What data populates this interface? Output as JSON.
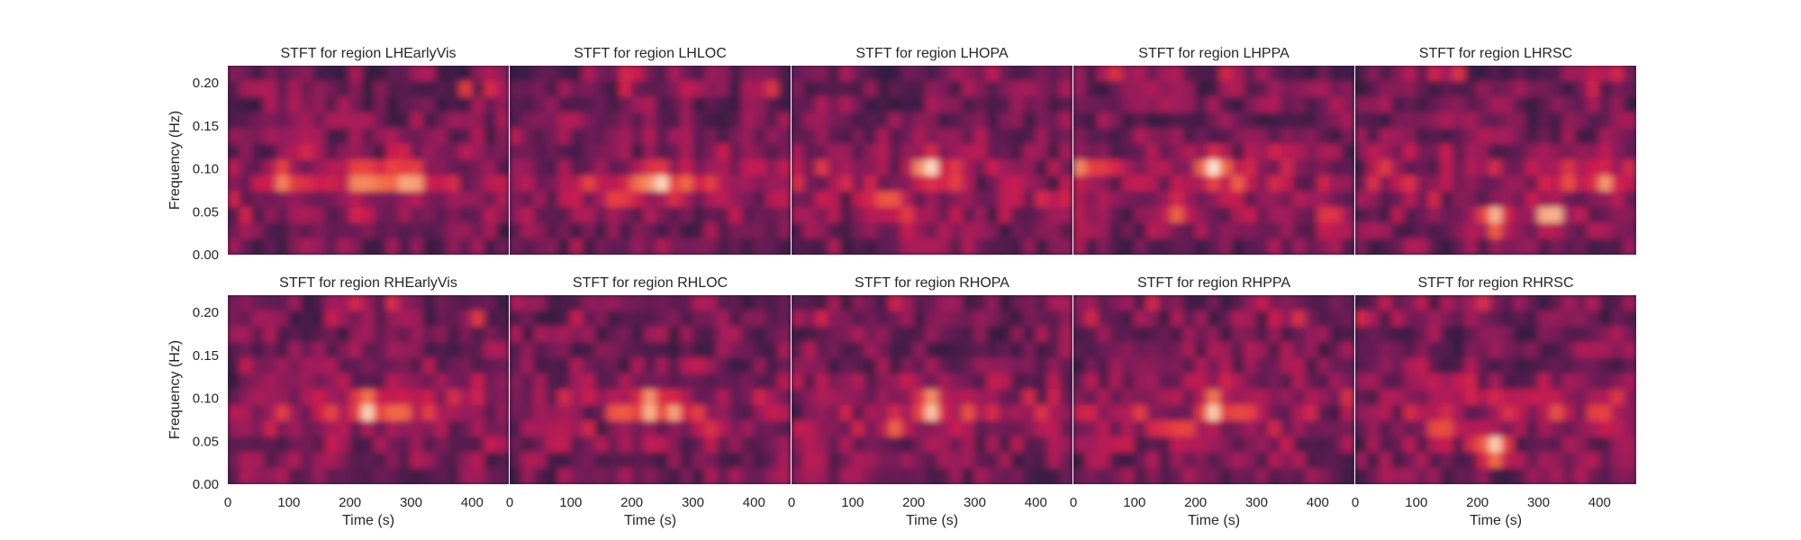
{
  "figure": {
    "background": "#ffffff",
    "colormap": "rocket",
    "colormap_stops": [
      "#03051a",
      "#2b1b3d",
      "#4c1d4b",
      "#701f57",
      "#a11a5b",
      "#cb1b4f",
      "#e83f3f",
      "#f26a43",
      "#f69c73",
      "#f9c9aa",
      "#faebdd"
    ]
  },
  "chart_data": [
    {
      "type": "heatmap",
      "title": "STFT for region LHEarlyVis",
      "xlabel": "",
      "ylabel": "Frequency (Hz)",
      "xlim": [
        0,
        460
      ],
      "ylim": [
        0,
        0.22
      ],
      "xticks": [],
      "yticks": [
        "0.00",
        "0.05",
        "0.10",
        "0.15",
        "0.20"
      ],
      "grid": false,
      "hotspots": [
        {
          "t": 90,
          "f": 0.088,
          "intensity": 0.78
        },
        {
          "t": 120,
          "f": 0.082,
          "intensity": 0.62
        },
        {
          "t": 160,
          "f": 0.085,
          "intensity": 0.55
        },
        {
          "t": 220,
          "f": 0.088,
          "intensity": 0.9
        },
        {
          "t": 260,
          "f": 0.088,
          "intensity": 0.82
        },
        {
          "t": 300,
          "f": 0.085,
          "intensity": 0.92
        },
        {
          "t": 340,
          "f": 0.085,
          "intensity": 0.55
        }
      ]
    },
    {
      "type": "heatmap",
      "title": "STFT for region LHLOC",
      "xlabel": "",
      "ylabel": "",
      "xlim": [
        0,
        460
      ],
      "ylim": [
        0,
        0.22
      ],
      "xticks": [],
      "yticks": [],
      "grid": false,
      "hotspots": [
        {
          "t": 180,
          "f": 0.07,
          "intensity": 0.7
        },
        {
          "t": 210,
          "f": 0.085,
          "intensity": 0.72
        },
        {
          "t": 245,
          "f": 0.085,
          "intensity": 0.98
        },
        {
          "t": 290,
          "f": 0.085,
          "intensity": 0.7
        },
        {
          "t": 330,
          "f": 0.08,
          "intensity": 0.6
        }
      ]
    },
    {
      "type": "heatmap",
      "title": "STFT for region LHOPA",
      "xlabel": "",
      "ylabel": "",
      "xlim": [
        0,
        460
      ],
      "ylim": [
        0,
        0.22
      ],
      "xticks": [],
      "yticks": [],
      "grid": false,
      "hotspots": [
        {
          "t": 160,
          "f": 0.06,
          "intensity": 0.75
        },
        {
          "t": 190,
          "f": 0.04,
          "intensity": 0.62
        },
        {
          "t": 225,
          "f": 0.1,
          "intensity": 0.98
        },
        {
          "t": 270,
          "f": 0.085,
          "intensity": 0.6
        },
        {
          "t": 370,
          "f": 0.085,
          "intensity": 0.5
        }
      ]
    },
    {
      "type": "heatmap",
      "title": "STFT for region LHPPA",
      "xlabel": "",
      "ylabel": "",
      "xlim": [
        0,
        460
      ],
      "ylim": [
        0,
        0.22
      ],
      "xticks": [],
      "yticks": [],
      "grid": false,
      "hotspots": [
        {
          "t": 15,
          "f": 0.1,
          "intensity": 0.78
        },
        {
          "t": 170,
          "f": 0.05,
          "intensity": 0.7
        },
        {
          "t": 230,
          "f": 0.1,
          "intensity": 0.98
        },
        {
          "t": 270,
          "f": 0.085,
          "intensity": 0.68
        },
        {
          "t": 420,
          "f": 0.04,
          "intensity": 0.68
        }
      ]
    },
    {
      "type": "heatmap",
      "title": "STFT for region LHRSC",
      "xlabel": "",
      "ylabel": "",
      "xlim": [
        0,
        460
      ],
      "ylim": [
        0,
        0.22
      ],
      "xticks": [],
      "yticks": [],
      "grid": false,
      "hotspots": [
        {
          "t": 230,
          "f": 0.04,
          "intensity": 0.92
        },
        {
          "t": 320,
          "f": 0.045,
          "intensity": 0.95
        },
        {
          "t": 350,
          "f": 0.09,
          "intensity": 0.7
        },
        {
          "t": 410,
          "f": 0.085,
          "intensity": 0.8
        }
      ]
    },
    {
      "type": "heatmap",
      "title": "STFT for region RHEarlyVis",
      "xlabel": "Time (s)",
      "ylabel": "Frequency (Hz)",
      "xlim": [
        0,
        460
      ],
      "ylim": [
        0,
        0.22
      ],
      "xticks": [
        "0",
        "100",
        "200",
        "300",
        "400"
      ],
      "yticks": [
        "0.00",
        "0.05",
        "0.10",
        "0.15",
        "0.20"
      ],
      "grid": false,
      "hotspots": [
        {
          "t": 90,
          "f": 0.085,
          "intensity": 0.6
        },
        {
          "t": 170,
          "f": 0.085,
          "intensity": 0.62
        },
        {
          "t": 230,
          "f": 0.088,
          "intensity": 0.98
        },
        {
          "t": 280,
          "f": 0.085,
          "intensity": 0.78
        },
        {
          "t": 330,
          "f": 0.085,
          "intensity": 0.6
        }
      ]
    },
    {
      "type": "heatmap",
      "title": "STFT for region RHLOC",
      "xlabel": "Time (s)",
      "ylabel": "",
      "xlim": [
        0,
        460
      ],
      "ylim": [
        0,
        0.22
      ],
      "xticks": [
        "0",
        "100",
        "200",
        "300",
        "400"
      ],
      "yticks": [],
      "grid": false,
      "hotspots": [
        {
          "t": 180,
          "f": 0.085,
          "intensity": 0.72
        },
        {
          "t": 230,
          "f": 0.09,
          "intensity": 0.95
        },
        {
          "t": 270,
          "f": 0.085,
          "intensity": 0.82
        },
        {
          "t": 310,
          "f": 0.08,
          "intensity": 0.6
        }
      ]
    },
    {
      "type": "heatmap",
      "title": "STFT for region RHOPA",
      "xlabel": "Time (s)",
      "ylabel": "",
      "xlim": [
        0,
        460
      ],
      "ylim": [
        0,
        0.22
      ],
      "xticks": [
        "0",
        "100",
        "200",
        "300",
        "400"
      ],
      "yticks": [],
      "grid": false,
      "hotspots": [
        {
          "t": 170,
          "f": 0.07,
          "intensity": 0.72
        },
        {
          "t": 230,
          "f": 0.09,
          "intensity": 0.98
        },
        {
          "t": 290,
          "f": 0.085,
          "intensity": 0.65
        },
        {
          "t": 330,
          "f": 0.085,
          "intensity": 0.55
        },
        {
          "t": 30,
          "f": 0.02,
          "intensity": 0.5
        }
      ]
    },
    {
      "type": "heatmap",
      "title": "STFT for region RHPPA",
      "xlabel": "Time (s)",
      "ylabel": "",
      "xlim": [
        0,
        460
      ],
      "ylim": [
        0,
        0.22
      ],
      "xticks": [
        "0",
        "100",
        "200",
        "300",
        "400"
      ],
      "yticks": [],
      "grid": false,
      "hotspots": [
        {
          "t": 180,
          "f": 0.06,
          "intensity": 0.7
        },
        {
          "t": 230,
          "f": 0.088,
          "intensity": 0.97
        },
        {
          "t": 280,
          "f": 0.085,
          "intensity": 0.68
        },
        {
          "t": 110,
          "f": 0.08,
          "intensity": 0.45
        }
      ]
    },
    {
      "type": "heatmap",
      "title": "STFT for region RHRSC",
      "xlabel": "Time (s)",
      "ylabel": "",
      "xlim": [
        0,
        460
      ],
      "ylim": [
        0,
        0.22
      ],
      "xticks": [
        "0",
        "100",
        "200",
        "300",
        "400"
      ],
      "yticks": [],
      "grid": false,
      "hotspots": [
        {
          "t": 140,
          "f": 0.06,
          "intensity": 0.72
        },
        {
          "t": 200,
          "f": 0.05,
          "intensity": 0.62
        },
        {
          "t": 230,
          "f": 0.04,
          "intensity": 0.98
        },
        {
          "t": 330,
          "f": 0.085,
          "intensity": 0.65
        },
        {
          "t": 400,
          "f": 0.085,
          "intensity": 0.68
        }
      ]
    }
  ]
}
